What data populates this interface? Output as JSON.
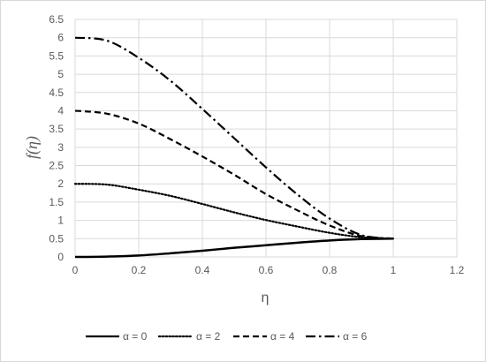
{
  "chart_data": {
    "type": "line",
    "title": "",
    "xlabel": "η",
    "ylabel": "f(η)",
    "xlim": [
      0,
      1.2
    ],
    "ylim": [
      0,
      6.5
    ],
    "xticks": [
      "0",
      "0.2",
      "0.4",
      "0.6",
      "0.8",
      "1",
      "1.2"
    ],
    "yticks": [
      "0",
      "0.5",
      "1",
      "1.5",
      "2",
      "2.5",
      "3",
      "3.5",
      "4",
      "4.5",
      "5",
      "5.5",
      "6",
      "6.5"
    ],
    "grid": "major gridlines on",
    "legend_position": "bottom",
    "x": [
      0,
      0.1,
      0.2,
      0.3,
      0.4,
      0.5,
      0.6,
      0.7,
      0.8,
      0.9,
      1.0
    ],
    "series": [
      {
        "name": "α = 0",
        "dash": "solid",
        "color": "#000000",
        "values": [
          0,
          0.01,
          0.04,
          0.1,
          0.17,
          0.25,
          0.32,
          0.39,
          0.45,
          0.49,
          0.5
        ]
      },
      {
        "name": "α = 2",
        "dash": "dotted",
        "color": "#000000",
        "values": [
          2,
          1.98,
          1.84,
          1.67,
          1.45,
          1.22,
          1.01,
          0.83,
          0.66,
          0.54,
          0.5
        ]
      },
      {
        "name": "α = 4",
        "dash": "dashed",
        "color": "#000000",
        "values": [
          4,
          3.92,
          3.65,
          3.22,
          2.75,
          2.25,
          1.72,
          1.27,
          0.86,
          0.57,
          0.5
        ]
      },
      {
        "name": "α = 6",
        "dash": "dashdot",
        "color": "#000000",
        "values": [
          6,
          5.92,
          5.45,
          4.82,
          4.05,
          3.25,
          2.45,
          1.7,
          1.05,
          0.6,
          0.5
        ]
      }
    ]
  }
}
